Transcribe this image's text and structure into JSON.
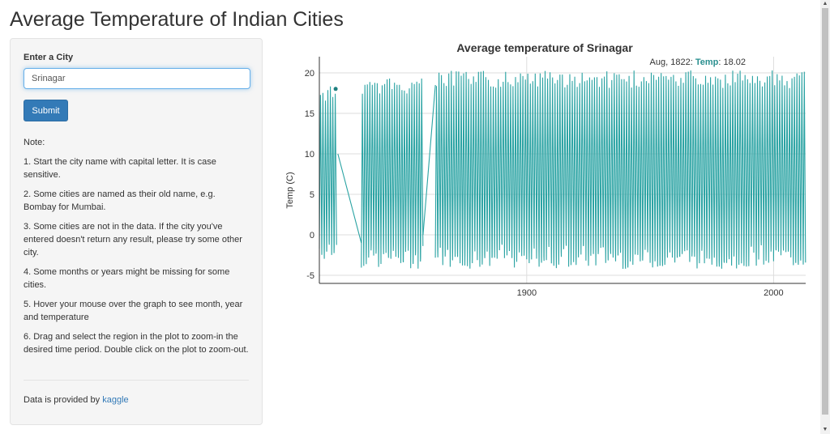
{
  "page": {
    "title": "Average Temperature of Indian Cities"
  },
  "sidebar": {
    "label": "Enter a City",
    "input_value": "Srinagar",
    "submit_label": "Submit",
    "note_heading": "Note:",
    "notes": [
      "1. Start the city name with capital letter. It is case sensitive.",
      "2. Some cities are named as their old name, e.g. Bombay for Mumbai.",
      "3. Some cities are not in the data. If the city you've entered doesn't return any result, please try some other city.",
      "4. Some months or years might be missing for some cities.",
      "5. Hover your mouse over the graph to see month, year and temperature",
      "6. Drag and select the region in the plot to zoom-in the desired time period. Double click on the plot to zoom-out."
    ],
    "credit_prefix": "Data is provided by ",
    "credit_link": "kaggle"
  },
  "colors": {
    "series": "#2aa3a3",
    "accent": "#337ab7"
  },
  "chart_data": {
    "type": "line",
    "title": "Average temperature of Srinagar",
    "ylabel": "Temp (C)",
    "xlabel": "",
    "ylim": [
      -6,
      22
    ],
    "xlim": [
      1816,
      2013
    ],
    "y_ticks": [
      20,
      15,
      10,
      5,
      0,
      -5
    ],
    "x_ticks": [
      1900,
      2000
    ],
    "grid": true,
    "series": [
      {
        "segments": [
          {
            "start": 1816,
            "end": 1823,
            "low": -2,
            "high": 18.5
          },
          {
            "start": 1833,
            "end": 1858,
            "low": -3,
            "high": 19.5
          },
          {
            "start": 1863,
            "end": 2013,
            "low": -3,
            "high": 20.3
          }
        ],
        "connectors": [
          {
            "x": [
              1823.5,
              1833
            ],
            "y": [
              10,
              -1
            ]
          },
          {
            "x": [
              1858,
              1863
            ],
            "y": [
              0,
              18.5
            ]
          }
        ]
      }
    ],
    "hover": {
      "date": "Aug, 1822",
      "label": "Temp",
      "value": "18.02",
      "x": 1822.6,
      "y": 18.02
    }
  }
}
